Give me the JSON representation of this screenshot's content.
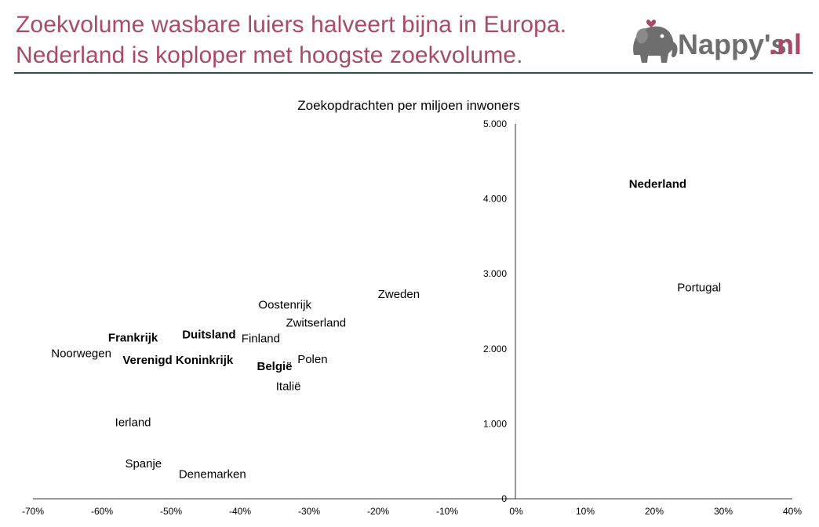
{
  "header": {
    "title_line1": "Zoekvolume wasbare luiers halveert bijna in Europa.",
    "title_line2": "Nederland is koploper met hoogste zoekvolume.",
    "logo_text_main": "Nappy's",
    "logo_text_suffix": ".nl"
  },
  "colors": {
    "title": "#a94a66",
    "rule": "#2f4f5f",
    "logo_gray": "#6e6e6e",
    "logo_accent": "#a94a66"
  },
  "chart_data": {
    "type": "scatter",
    "title": "Zoekopdrachten per miljoen inwoners",
    "xlabel": "",
    "ylabel": "",
    "xlim": [
      -70,
      40
    ],
    "ylim": [
      0,
      5000
    ],
    "x_unit": "%",
    "x_ticks": [
      "-70%",
      "-60%",
      "-50%",
      "-40%",
      "-30%",
      "-20%",
      "-10%",
      "0%",
      "10%",
      "20%",
      "30%",
      "40%"
    ],
    "y_ticks": [
      "0",
      "1.000",
      "2.000",
      "3.000",
      "4.000",
      "5.000"
    ],
    "grid": false,
    "points": [
      {
        "label": "Nederland",
        "x": 20.5,
        "y": 4200,
        "bold": true
      },
      {
        "label": "Portugal",
        "x": 26.5,
        "y": 2820,
        "bold": false
      },
      {
        "label": "Zweden",
        "x": -17,
        "y": 2730,
        "bold": false
      },
      {
        "label": "Oostenrijk",
        "x": -33.5,
        "y": 2590,
        "bold": false
      },
      {
        "label": "Zwitserland",
        "x": -29,
        "y": 2350,
        "bold": false
      },
      {
        "label": "Frankrijk",
        "x": -55.5,
        "y": 2150,
        "bold": true
      },
      {
        "label": "Duitsland",
        "x": -44.5,
        "y": 2190,
        "bold": true
      },
      {
        "label": "Finland",
        "x": -37,
        "y": 2140,
        "bold": false
      },
      {
        "label": "Noorwegen",
        "x": -63,
        "y": 1940,
        "bold": false
      },
      {
        "label": "Verenigd Koninkrijk",
        "x": -49,
        "y": 1850,
        "bold": true
      },
      {
        "label": "België",
        "x": -35,
        "y": 1770,
        "bold": true
      },
      {
        "label": "Polen",
        "x": -29.5,
        "y": 1860,
        "bold": false
      },
      {
        "label": "Italië",
        "x": -33,
        "y": 1500,
        "bold": false
      },
      {
        "label": "Ierland",
        "x": -55.5,
        "y": 1020,
        "bold": false
      },
      {
        "label": "Spanje",
        "x": -54,
        "y": 470,
        "bold": false
      },
      {
        "label": "Denemarken",
        "x": -44,
        "y": 330,
        "bold": false
      }
    ]
  }
}
